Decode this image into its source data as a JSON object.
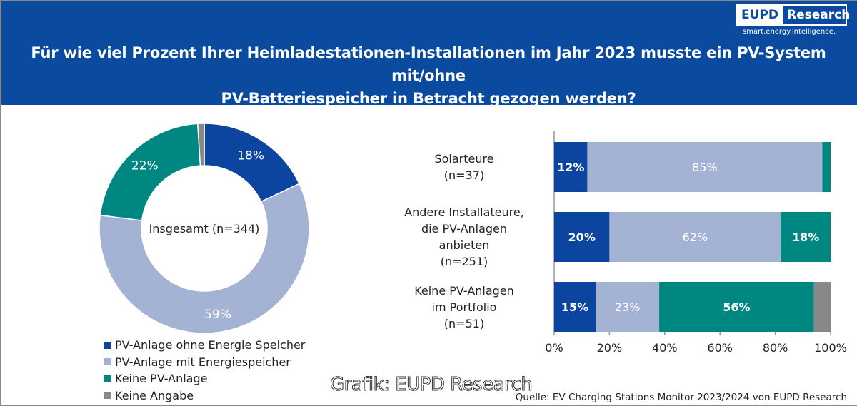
{
  "header": {
    "title_line1": "Für wie viel Prozent Ihrer Heimladestationen-Installationen im Jahr 2023 musste ein PV-System mit/ohne",
    "title_line2": "PV-Batteriespeicher in Betracht gezogen werden?",
    "logo_left": "EUPD",
    "logo_right": "Research",
    "logo_tagline": "smart.energy.intelligence."
  },
  "colors": {
    "header_bg": "#0a4a9f",
    "pv_ohne": "#0b45a0",
    "pv_mit": "#a4b3d3",
    "keine_pv": "#008782",
    "keine_angabe": "#888888"
  },
  "footer": {
    "watermark": "Grafik: EUPD Research",
    "source": "Quelle: EV Charging Stations Monitor 2023/2024 von EUPD Research"
  },
  "chart_data": [
    {
      "type": "pie",
      "variant": "donut",
      "title": "Insgesamt (n=344)",
      "categories": [
        "PV-Anlage ohne Energie Speicher",
        "PV-Anlage mit Energiespeicher",
        "Keine PV-Anlage",
        "Keine Angabe"
      ],
      "values": [
        18,
        59,
        22,
        1
      ],
      "data_labels": [
        "18%",
        "59%",
        "22%",
        ""
      ],
      "legend": "bottom-left"
    },
    {
      "type": "bar",
      "orientation": "horizontal",
      "stacked": true,
      "categories": [
        [
          "Solarteure",
          "(n=37)"
        ],
        [
          "Andere Installateure,",
          "die PV-Anlagen",
          "anbieten",
          "(n=251)"
        ],
        [
          "Keine PV-Anlagen",
          "im Portfolio",
          "(n=51)"
        ]
      ],
      "series": [
        {
          "name": "PV-Anlage ohne Energie Speicher",
          "values": [
            12,
            20,
            15
          ],
          "labels": [
            "12%",
            "20%",
            "15%"
          ]
        },
        {
          "name": "PV-Anlage mit Energiespeicher",
          "values": [
            85,
            62,
            23
          ],
          "labels": [
            "85%",
            "62%",
            "23%"
          ]
        },
        {
          "name": "Keine PV-Anlage",
          "values": [
            3,
            18,
            56
          ],
          "labels": [
            "",
            "18%",
            "56%"
          ]
        },
        {
          "name": "Keine Angabe",
          "values": [
            0,
            0,
            6
          ],
          "labels": [
            "",
            "",
            ""
          ]
        }
      ],
      "xlim": [
        0,
        100
      ],
      "xticks": [
        "0%",
        "20%",
        "40%",
        "60%",
        "80%",
        "100%"
      ],
      "grid": false
    }
  ]
}
